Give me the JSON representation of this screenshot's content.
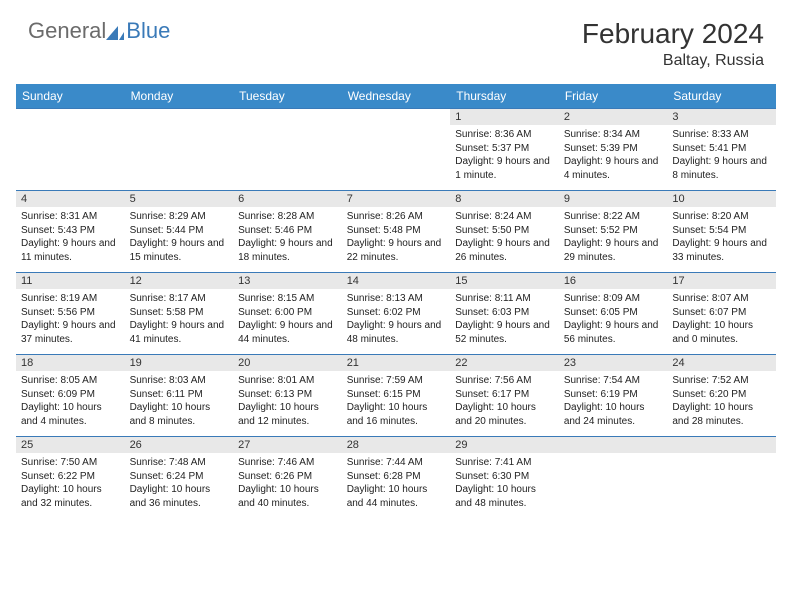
{
  "logo": {
    "part1": "General",
    "part2": "Blue"
  },
  "title": "February 2024",
  "location": "Baltay, Russia",
  "dayHeaders": [
    "Sunday",
    "Monday",
    "Tuesday",
    "Wednesday",
    "Thursday",
    "Friday",
    "Saturday"
  ],
  "header_bg": "#3a8ac9",
  "border_color": "#3a7ab8",
  "daynum_bg": "#e8e8e8",
  "weeks": [
    [
      {
        "empty": true
      },
      {
        "empty": true
      },
      {
        "empty": true
      },
      {
        "empty": true
      },
      {
        "num": "1",
        "sunrise": "Sunrise: 8:36 AM",
        "sunset": "Sunset: 5:37 PM",
        "daylight": "Daylight: 9 hours and 1 minute."
      },
      {
        "num": "2",
        "sunrise": "Sunrise: 8:34 AM",
        "sunset": "Sunset: 5:39 PM",
        "daylight": "Daylight: 9 hours and 4 minutes."
      },
      {
        "num": "3",
        "sunrise": "Sunrise: 8:33 AM",
        "sunset": "Sunset: 5:41 PM",
        "daylight": "Daylight: 9 hours and 8 minutes."
      }
    ],
    [
      {
        "num": "4",
        "sunrise": "Sunrise: 8:31 AM",
        "sunset": "Sunset: 5:43 PM",
        "daylight": "Daylight: 9 hours and 11 minutes."
      },
      {
        "num": "5",
        "sunrise": "Sunrise: 8:29 AM",
        "sunset": "Sunset: 5:44 PM",
        "daylight": "Daylight: 9 hours and 15 minutes."
      },
      {
        "num": "6",
        "sunrise": "Sunrise: 8:28 AM",
        "sunset": "Sunset: 5:46 PM",
        "daylight": "Daylight: 9 hours and 18 minutes."
      },
      {
        "num": "7",
        "sunrise": "Sunrise: 8:26 AM",
        "sunset": "Sunset: 5:48 PM",
        "daylight": "Daylight: 9 hours and 22 minutes."
      },
      {
        "num": "8",
        "sunrise": "Sunrise: 8:24 AM",
        "sunset": "Sunset: 5:50 PM",
        "daylight": "Daylight: 9 hours and 26 minutes."
      },
      {
        "num": "9",
        "sunrise": "Sunrise: 8:22 AM",
        "sunset": "Sunset: 5:52 PM",
        "daylight": "Daylight: 9 hours and 29 minutes."
      },
      {
        "num": "10",
        "sunrise": "Sunrise: 8:20 AM",
        "sunset": "Sunset: 5:54 PM",
        "daylight": "Daylight: 9 hours and 33 minutes."
      }
    ],
    [
      {
        "num": "11",
        "sunrise": "Sunrise: 8:19 AM",
        "sunset": "Sunset: 5:56 PM",
        "daylight": "Daylight: 9 hours and 37 minutes."
      },
      {
        "num": "12",
        "sunrise": "Sunrise: 8:17 AM",
        "sunset": "Sunset: 5:58 PM",
        "daylight": "Daylight: 9 hours and 41 minutes."
      },
      {
        "num": "13",
        "sunrise": "Sunrise: 8:15 AM",
        "sunset": "Sunset: 6:00 PM",
        "daylight": "Daylight: 9 hours and 44 minutes."
      },
      {
        "num": "14",
        "sunrise": "Sunrise: 8:13 AM",
        "sunset": "Sunset: 6:02 PM",
        "daylight": "Daylight: 9 hours and 48 minutes."
      },
      {
        "num": "15",
        "sunrise": "Sunrise: 8:11 AM",
        "sunset": "Sunset: 6:03 PM",
        "daylight": "Daylight: 9 hours and 52 minutes."
      },
      {
        "num": "16",
        "sunrise": "Sunrise: 8:09 AM",
        "sunset": "Sunset: 6:05 PM",
        "daylight": "Daylight: 9 hours and 56 minutes."
      },
      {
        "num": "17",
        "sunrise": "Sunrise: 8:07 AM",
        "sunset": "Sunset: 6:07 PM",
        "daylight": "Daylight: 10 hours and 0 minutes."
      }
    ],
    [
      {
        "num": "18",
        "sunrise": "Sunrise: 8:05 AM",
        "sunset": "Sunset: 6:09 PM",
        "daylight": "Daylight: 10 hours and 4 minutes."
      },
      {
        "num": "19",
        "sunrise": "Sunrise: 8:03 AM",
        "sunset": "Sunset: 6:11 PM",
        "daylight": "Daylight: 10 hours and 8 minutes."
      },
      {
        "num": "20",
        "sunrise": "Sunrise: 8:01 AM",
        "sunset": "Sunset: 6:13 PM",
        "daylight": "Daylight: 10 hours and 12 minutes."
      },
      {
        "num": "21",
        "sunrise": "Sunrise: 7:59 AM",
        "sunset": "Sunset: 6:15 PM",
        "daylight": "Daylight: 10 hours and 16 minutes."
      },
      {
        "num": "22",
        "sunrise": "Sunrise: 7:56 AM",
        "sunset": "Sunset: 6:17 PM",
        "daylight": "Daylight: 10 hours and 20 minutes."
      },
      {
        "num": "23",
        "sunrise": "Sunrise: 7:54 AM",
        "sunset": "Sunset: 6:19 PM",
        "daylight": "Daylight: 10 hours and 24 minutes."
      },
      {
        "num": "24",
        "sunrise": "Sunrise: 7:52 AM",
        "sunset": "Sunset: 6:20 PM",
        "daylight": "Daylight: 10 hours and 28 minutes."
      }
    ],
    [
      {
        "num": "25",
        "sunrise": "Sunrise: 7:50 AM",
        "sunset": "Sunset: 6:22 PM",
        "daylight": "Daylight: 10 hours and 32 minutes."
      },
      {
        "num": "26",
        "sunrise": "Sunrise: 7:48 AM",
        "sunset": "Sunset: 6:24 PM",
        "daylight": "Daylight: 10 hours and 36 minutes."
      },
      {
        "num": "27",
        "sunrise": "Sunrise: 7:46 AM",
        "sunset": "Sunset: 6:26 PM",
        "daylight": "Daylight: 10 hours and 40 minutes."
      },
      {
        "num": "28",
        "sunrise": "Sunrise: 7:44 AM",
        "sunset": "Sunset: 6:28 PM",
        "daylight": "Daylight: 10 hours and 44 minutes."
      },
      {
        "num": "29",
        "sunrise": "Sunrise: 7:41 AM",
        "sunset": "Sunset: 6:30 PM",
        "daylight": "Daylight: 10 hours and 48 minutes."
      },
      {
        "empty": true
      },
      {
        "empty": true
      }
    ]
  ]
}
